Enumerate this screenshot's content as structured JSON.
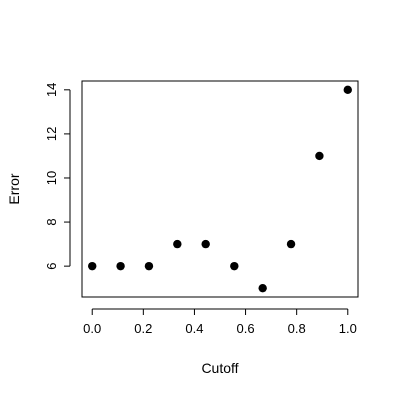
{
  "chart_data": {
    "type": "scatter",
    "title": "",
    "xlabel": "Cutoff",
    "ylabel": "Error",
    "xlim": [
      -0.04,
      1.04
    ],
    "ylim": [
      4.6,
      14.4
    ],
    "xticks": [
      0.0,
      0.2,
      0.4,
      0.6,
      0.8,
      1.0
    ],
    "xtick_labels": [
      "0.0",
      "0.2",
      "0.4",
      "0.6",
      "0.8",
      "1.0"
    ],
    "yticks": [
      6,
      8,
      10,
      12,
      14
    ],
    "ytick_labels": [
      "6",
      "8",
      "10",
      "12",
      "14"
    ],
    "grid": false,
    "legend": "none",
    "marker_color": "#000000",
    "x": [
      0.0,
      0.111,
      0.222,
      0.333,
      0.444,
      0.556,
      0.667,
      0.778,
      0.889,
      1.0
    ],
    "y": [
      6,
      6,
      6,
      7,
      7,
      6,
      5,
      7,
      11,
      14
    ]
  }
}
